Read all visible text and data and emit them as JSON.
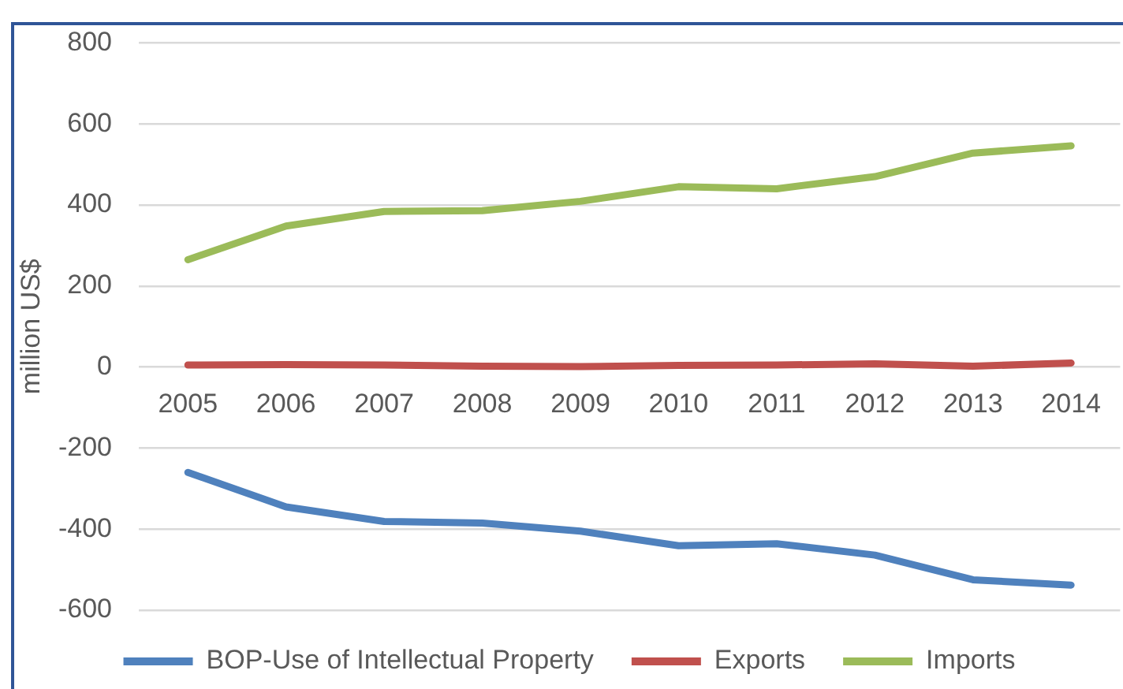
{
  "chart_data": {
    "type": "line",
    "ylabel": "million US$",
    "categories": [
      "2005",
      "2006",
      "2007",
      "2008",
      "2009",
      "2010",
      "2011",
      "2012",
      "2013",
      "2014"
    ],
    "series": [
      {
        "name": "BOP-Use of Intellectual Property",
        "color": "#4f81bd",
        "values": [
          -260,
          -345,
          -381,
          -385,
          -405,
          -441,
          -436,
          -464,
          -525,
          -538
        ]
      },
      {
        "name": "Exports",
        "color": "#c0504d",
        "values": [
          5,
          6,
          5,
          2,
          1,
          4,
          5,
          8,
          2,
          10
        ]
      },
      {
        "name": "Imports",
        "color": "#9bbb59",
        "values": [
          265,
          348,
          384,
          386,
          409,
          445,
          440,
          470,
          528,
          546
        ]
      }
    ],
    "ylim": [
      -600,
      800
    ],
    "yticks": [
      -600,
      -400,
      -200,
      0,
      200,
      400,
      600,
      800
    ],
    "grid": "y",
    "legend": "bottom"
  }
}
